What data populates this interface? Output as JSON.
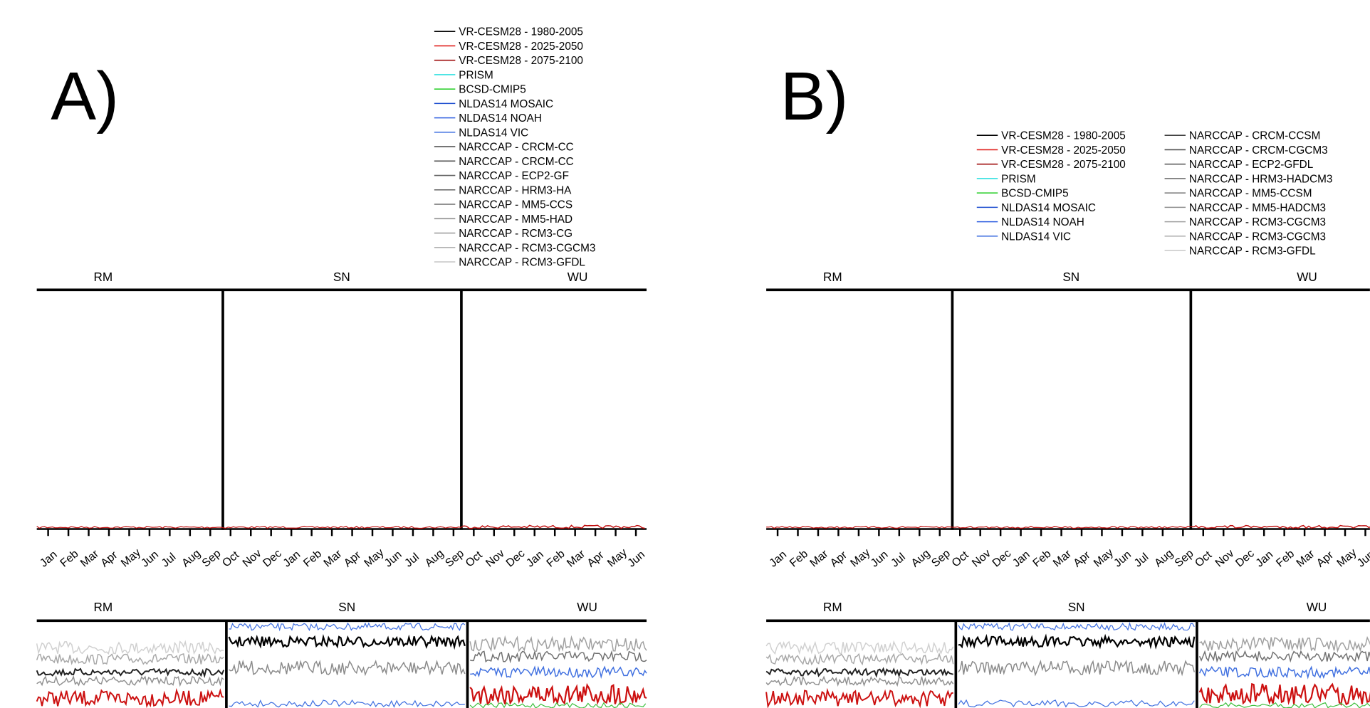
{
  "month_labels": [
    "Jan",
    "Feb",
    "Mar",
    "Apr",
    "May",
    "Jun",
    "Jul",
    "Aug",
    "Sep",
    "Oct",
    "Nov",
    "Dec",
    "Jan",
    "Feb",
    "Mar",
    "Apr",
    "May",
    "Jun",
    "Jul",
    "Aug",
    "Sep",
    "Oct",
    "Nov",
    "Dec",
    "Jan",
    "Feb",
    "Mar",
    "Apr",
    "May",
    "Jun"
  ],
  "panels": [
    {
      "label": "A)",
      "regions_top": [
        "RM",
        "SN",
        "WU"
      ],
      "regions_bottom": [
        "RM",
        "SN",
        "WU"
      ],
      "legend": [
        {
          "text": "VR-CESM28 - 1980-2005",
          "color": "#000000"
        },
        {
          "text": "VR-CESM28 - 2025-2050",
          "color": "#e0201e"
        },
        {
          "text": "VR-CESM28 - 2075-2100",
          "color": "#a01010"
        },
        {
          "text": "PRISM",
          "color": "#30e0e0"
        },
        {
          "text": "BCSD-CMIP5",
          "color": "#30d030"
        },
        {
          "text": "NLDAS14 MOSAIC",
          "color": "#2050d0"
        },
        {
          "text": "NLDAS14 NOAH",
          "color": "#3060e0"
        },
        {
          "text": "NLDAS14 VIC",
          "color": "#4070e0"
        },
        {
          "text": "NARCCAP - CRCM-CC",
          "color": "#404040"
        },
        {
          "text": "NARCCAP - CRCM-CC",
          "color": "#505050"
        },
        {
          "text": "NARCCAP - ECP2-GF",
          "color": "#606060"
        },
        {
          "text": "NARCCAP - HRM3-HA",
          "color": "#707070"
        },
        {
          "text": "NARCCAP - MM5-CCS",
          "color": "#808080"
        },
        {
          "text": "NARCCAP - MM5-HAD",
          "color": "#909090"
        },
        {
          "text": "NARCCAP - RCM3-CG",
          "color": "#a0a0a0"
        },
        {
          "text": "NARCCAP - RCM3-CGCM3",
          "color": "#b0b0b0"
        },
        {
          "text": "NARCCAP - RCM3-GFDL",
          "color": "#c8c8c8"
        }
      ]
    },
    {
      "label": "B)",
      "regions_top": [
        "RM",
        "SN",
        "WU"
      ],
      "regions_bottom": [
        "RM",
        "SN",
        "WU"
      ],
      "legend": [
        {
          "text": "VR-CESM28 - 1980-2005",
          "color": "#000000"
        },
        {
          "text": "VR-CESM28 - 2025-2050",
          "color": "#e0201e"
        },
        {
          "text": "VR-CESM28 - 2075-2100",
          "color": "#a01010"
        },
        {
          "text": "PRISM",
          "color": "#30e0e0"
        },
        {
          "text": "BCSD-CMIP5",
          "color": "#30d030"
        },
        {
          "text": "NLDAS14 MOSAIC",
          "color": "#2050d0"
        },
        {
          "text": "NLDAS14 NOAH",
          "color": "#3060e0"
        },
        {
          "text": "NLDAS14 VIC",
          "color": "#4070e0"
        },
        {
          "text": "NARCCAP - CRCM-CCSM",
          "color": "#404040"
        },
        {
          "text": "NARCCAP - CRCM-CGCM3",
          "color": "#505050"
        },
        {
          "text": "NARCCAP - ECP2-GFDL",
          "color": "#606060"
        },
        {
          "text": "NARCCAP - HRM3-HADCM3",
          "color": "#707070"
        },
        {
          "text": "NARCCAP - MM5-CCSM",
          "color": "#808080"
        },
        {
          "text": "NARCCAP - MM5-HADCM3",
          "color": "#909090"
        },
        {
          "text": "NARCCAP - RCM3-CGCM3",
          "color": "#a0a0a0"
        },
        {
          "text": "NARCCAP - RCM3-CGCM3",
          "color": "#b0b0b0"
        },
        {
          "text": "NARCCAP - RCM3-GFDL",
          "color": "#c8c8c8"
        }
      ]
    }
  ]
}
